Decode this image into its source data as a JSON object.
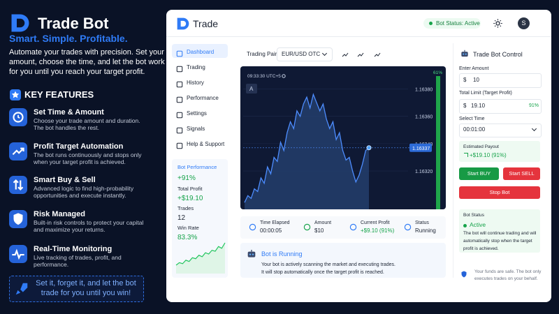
{
  "brand": {
    "name": "Trade Bot",
    "tagline": "Smart. Simple. Profitable.",
    "intro": [
      "Automate your trades with precision. Set your",
      "amount, choose the time, and let the bot work",
      "for you until you reach your target profit."
    ]
  },
  "features": {
    "heading": "KEY FEATURES",
    "items": [
      {
        "title": "Set Time & Amount",
        "desc": [
          "Choose your trade amount and duration.",
          "The bot handles the rest."
        ]
      },
      {
        "title": "Profit Target Automation",
        "desc": [
          "The bot runs continuously and stops only",
          "when your target profit is achieved."
        ]
      },
      {
        "title": "Smart Buy & Sell",
        "desc": [
          "Advanced logic to find high-probability",
          "opportunities and execute instantly."
        ]
      },
      {
        "title": "Risk Managed",
        "desc": [
          "Built-in risk controls to protect your capital",
          "and maximize your returns."
        ]
      },
      {
        "title": "Real-Time Monitoring",
        "desc": [
          "Live tracking of trades, profit, and",
          "performance."
        ]
      }
    ]
  },
  "cta": [
    "Set it, forget it, and let the bot",
    "trade for you until you win!"
  ],
  "app": {
    "header": {
      "title": "Trade",
      "status": "Bot Status: Active",
      "avatar": "S"
    },
    "menu": [
      "Dashboard",
      "Trading",
      "History",
      "Performance",
      "Settings",
      "Signals",
      "Help & Support"
    ],
    "performance": {
      "heading": "Bot Performance",
      "change": "+91%",
      "profit_label": "Total Profit",
      "profit": "+$19.10",
      "trades_label": "Trades",
      "trades": "12",
      "win_label": "Win Rate",
      "win": "83.3%",
      "trend": [
        1,
        2,
        1.6,
        3,
        2.5,
        4,
        3.6,
        5,
        4.4,
        6,
        5.5,
        7,
        6.6,
        8.5,
        7.8,
        10
      ]
    },
    "toolbar": {
      "pair_label": "Trading Pair",
      "pair": "EUR/USD OTC"
    },
    "chart": {
      "time": "09:33:30 UTC+5",
      "button": "A",
      "gauge": "61%",
      "ylim": [
        1.16292,
        1.16394
      ],
      "yticks": [
        {
          "value": 1.1638,
          "label": "1.16380"
        },
        {
          "value": 1.1636,
          "label": "1.16360"
        },
        {
          "value": 1.1634,
          "label": "1.16340"
        },
        {
          "value": 1.1632,
          "label": "1.16320"
        }
      ],
      "values": [
        1.16297,
        1.16302,
        1.163,
        1.16307,
        1.16305,
        1.16315,
        1.16311,
        1.16323,
        1.16318,
        1.1633,
        1.16327,
        1.16341,
        1.16335,
        1.16348,
        1.16356,
        1.16351,
        1.16364,
        1.1636,
        1.16369,
        1.16374,
        1.16366,
        1.16376,
        1.1637,
        1.16364,
        1.16369,
        1.16358,
        1.16351,
        1.16356,
        1.16343,
        1.16348,
        1.16335,
        1.16328,
        1.1633,
        1.1632,
        1.16312,
        1.16317,
        1.16325,
        1.16335,
        1.16337
      ],
      "current": 1.16337
    },
    "stats": [
      {
        "label": "Time Elapsed",
        "value": "00:00:05"
      },
      {
        "label": "Amount",
        "value": "$10"
      },
      {
        "label": "Current Profit",
        "value": "+$9.10 (91%)"
      },
      {
        "label": "Status",
        "value": "Running"
      }
    ],
    "running": {
      "title": "Bot is Running",
      "lines": [
        "Your bot is actively scanning the market and executing trades.",
        "It will stop automatically once the target profit is reached."
      ]
    },
    "control": {
      "title": "Trade Bot Control",
      "amount_label": "Enter Amount",
      "currency": "$",
      "amount": "10",
      "limit_label": "Total Limit (Target Profit)",
      "limit": "19.10",
      "limit_pct": "91%",
      "time_label": "Select Time",
      "time": "00:01:00",
      "payout_label": "Estimated Payout",
      "payout": "+$19.10 (91%)",
      "buy": "Start BUY",
      "sell": "Start SELL",
      "stop": "Stop Bot",
      "status_label": "Bot Status",
      "status": "Active",
      "status_lines": [
        "The bot will continue trading and will",
        "automatically stop when the target",
        "profit is achieved."
      ],
      "note": [
        "Your funds are safe. The bot only",
        "executes trades on your behalf."
      ]
    }
  }
}
